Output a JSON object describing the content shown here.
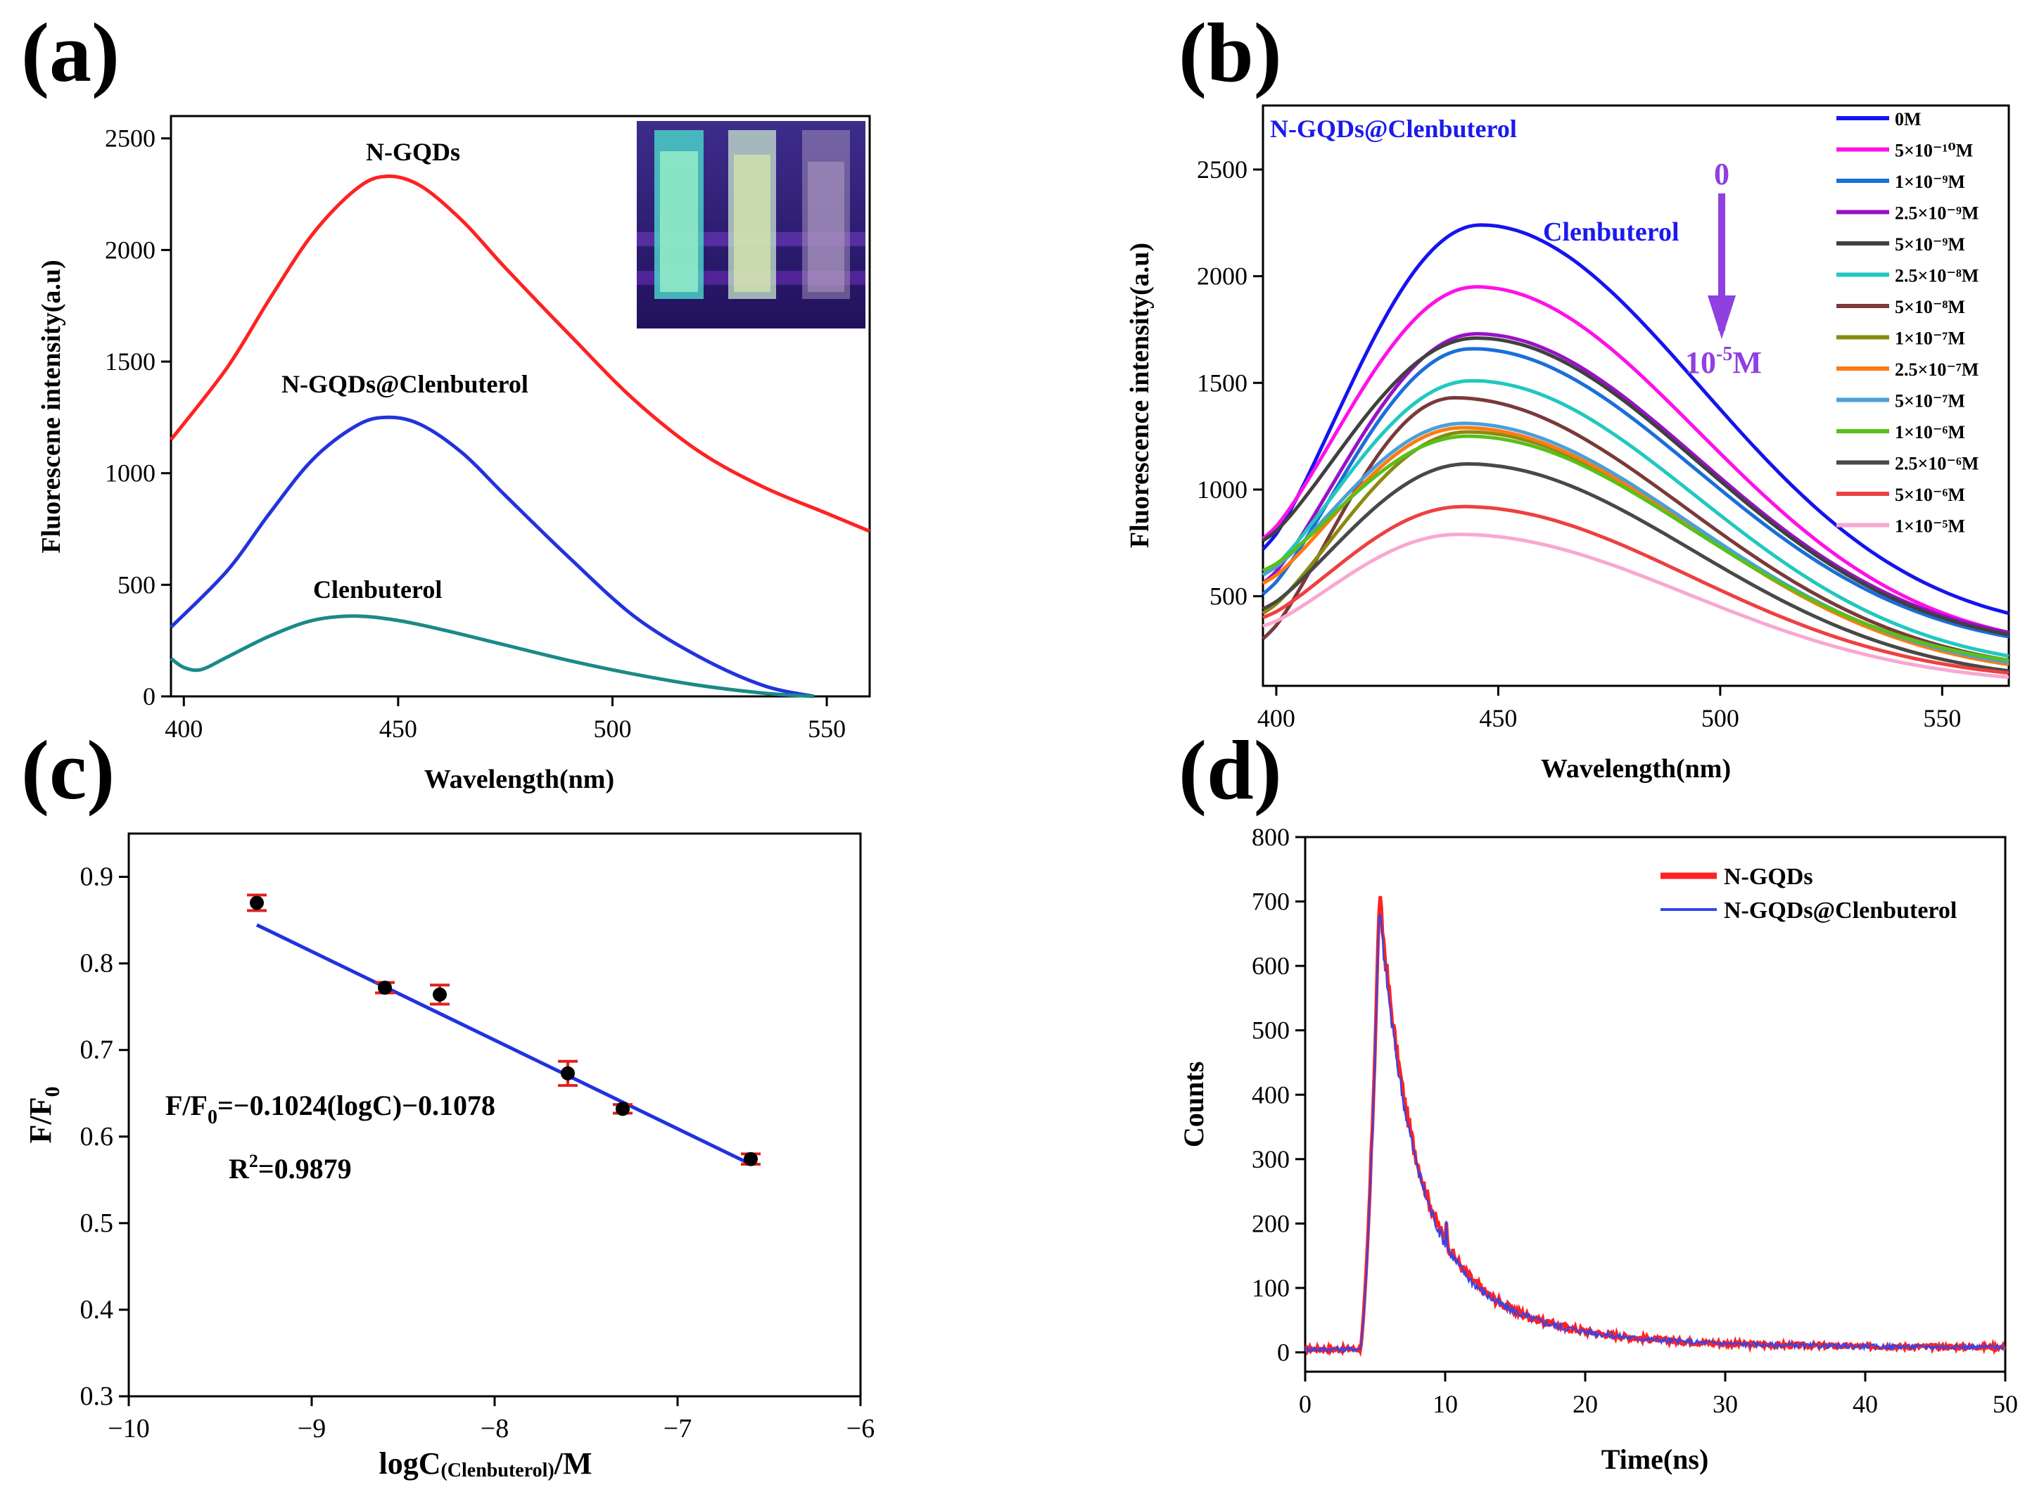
{
  "colors": {
    "axis": "#000000",
    "panel_bg": "#ffffff",
    "line_red": "#ff2222",
    "line_blue": "#2233dd",
    "line_teal": "#1a8a88",
    "fit_line": "#1f33e0",
    "err_bar": "#e02020",
    "marker": "#000000"
  },
  "chart_data": [
    {
      "panel_label": "(a)",
      "type": "line",
      "title": "",
      "xlabel": "Wavelength(nm)",
      "ylabel": "Fluorescene intensity(a.u)",
      "xlim": [
        397,
        560
      ],
      "ylim": [
        0,
        2600
      ],
      "xticks": [
        400,
        450,
        500,
        550
      ],
      "yticks": [
        0,
        500,
        1000,
        1500,
        2000,
        2500
      ],
      "inset": "photo-of-three-cuvettes-under-uv-light",
      "series": [
        {
          "name": "N-GQDs",
          "color": "#ff2222",
          "x": [
            397,
            410,
            420,
            430,
            440,
            447,
            455,
            465,
            475,
            490,
            505,
            520,
            535,
            550,
            560
          ],
          "y": [
            1150,
            1470,
            1780,
            2070,
            2270,
            2330,
            2290,
            2130,
            1920,
            1620,
            1330,
            1100,
            940,
            820,
            740
          ]
        },
        {
          "name": "N-GQDs@Clenbuterol",
          "color": "#2233dd",
          "x": [
            397,
            410,
            420,
            430,
            440,
            447,
            455,
            465,
            475,
            490,
            505,
            520,
            535,
            547
          ],
          "y": [
            310,
            560,
            820,
            1060,
            1210,
            1250,
            1220,
            1090,
            900,
            620,
            360,
            180,
            50,
            0
          ]
        },
        {
          "name": "Clenbuterol",
          "color": "#1a8a88",
          "x": [
            397,
            400,
            404,
            410,
            420,
            430,
            440,
            450,
            460,
            475,
            490,
            505,
            520,
            535,
            547
          ],
          "y": [
            170,
            130,
            120,
            175,
            270,
            340,
            360,
            340,
            300,
            230,
            160,
            100,
            50,
            15,
            0
          ]
        }
      ],
      "labels": [
        {
          "text": "N-GQDs"
        },
        {
          "text": "N-GQDs@Clenbuterol"
        },
        {
          "text": "Clenbuterol"
        }
      ]
    },
    {
      "panel_label": "(b)",
      "type": "line",
      "xlabel": "Wavelength(nm)",
      "ylabel": "Fluorescence intensity(a.u)",
      "xlim": [
        397,
        565
      ],
      "ylim": [
        80,
        2800
      ],
      "xticks": [
        400,
        450,
        500,
        550
      ],
      "yticks": [
        500,
        1000,
        1500,
        2000,
        2500
      ],
      "inner_title": "N-GQDs@Clenbuterol",
      "annotation_label": "Clenbuterol",
      "arrow_top": "0",
      "arrow_bottom_base": "10",
      "arrow_bottom_exp": "-5",
      "arrow_bottom_unit": "M",
      "legend_position": "top-right",
      "series": [
        {
          "name": "0M",
          "color": "#1414ee",
          "y0": 720,
          "peak": 2240,
          "peak_x": 446,
          "end": 420
        },
        {
          "name": "5×10⁻¹⁰M",
          "color": "#ff10e8",
          "y0": 770,
          "peak": 1950,
          "peak_x": 445,
          "end": 330
        },
        {
          "name": "1×10⁻⁹M",
          "color": "#1a6fd8",
          "y0": 510,
          "peak": 1660,
          "peak_x": 444,
          "end": 310
        },
        {
          "name": "2.5×10⁻⁹M",
          "color": "#9a10c8",
          "y0": 560,
          "peak": 1730,
          "peak_x": 445,
          "end": 330
        },
        {
          "name": "5×10⁻⁹M",
          "color": "#404040",
          "y0": 760,
          "peak": 1710,
          "peak_x": 445,
          "end": 320
        },
        {
          "name": "2.5×10⁻⁸M",
          "color": "#20c8c0",
          "y0": 600,
          "peak": 1510,
          "peak_x": 444,
          "end": 220
        },
        {
          "name": "5×10⁻⁸M",
          "color": "#7a3a3a",
          "y0": 300,
          "peak": 1430,
          "peak_x": 440,
          "end": 200
        },
        {
          "name": "1×10⁻⁷M",
          "color": "#8a8a10",
          "y0": 420,
          "peak": 1270,
          "peak_x": 443,
          "end": 190
        },
        {
          "name": "2.5×10⁻⁷M",
          "color": "#ff7a10",
          "y0": 560,
          "peak": 1290,
          "peak_x": 442,
          "end": 180
        },
        {
          "name": "5×10⁻⁷M",
          "color": "#4aa0d8",
          "y0": 600,
          "peak": 1310,
          "peak_x": 442,
          "end": 190
        },
        {
          "name": "1×10⁻⁶M",
          "color": "#58c018",
          "y0": 620,
          "peak": 1250,
          "peak_x": 443,
          "end": 200
        },
        {
          "name": "2.5×10⁻⁶M",
          "color": "#484848",
          "y0": 440,
          "peak": 1120,
          "peak_x": 443,
          "end": 150
        },
        {
          "name": "5×10⁻⁶M",
          "color": "#ee4040",
          "y0": 400,
          "peak": 920,
          "peak_x": 442,
          "end": 140
        },
        {
          "name": "1×10⁻⁵M",
          "color": "#f8a8d0",
          "y0": 360,
          "peak": 790,
          "peak_x": 441,
          "end": 120
        }
      ]
    },
    {
      "panel_label": "(c)",
      "type": "scatter",
      "xlabel_main": "logC",
      "xlabel_sub": "(Clenbuterol)",
      "xlabel_tail": "/M",
      "ylabel_main": "F/F",
      "ylabel_sub": "0",
      "xlim": [
        -10,
        -6
      ],
      "ylim": [
        0.3,
        0.95
      ],
      "xticks": [
        -10,
        -9,
        -8,
        -7,
        -6
      ],
      "xticklabels": [
        "−10",
        "−9",
        "−8",
        "−7",
        "−6"
      ],
      "yticks": [
        0.3,
        0.4,
        0.5,
        0.6,
        0.7,
        0.8,
        0.9
      ],
      "yticklabels": [
        "0.3",
        "0.4",
        "0.5",
        "0.6",
        "0.7",
        "0.8",
        "0.9"
      ],
      "points": [
        {
          "x": -9.3,
          "y": 0.87,
          "err": 0.009
        },
        {
          "x": -8.6,
          "y": 0.772,
          "err": 0.006
        },
        {
          "x": -8.3,
          "y": 0.764,
          "err": 0.011
        },
        {
          "x": -7.6,
          "y": 0.673,
          "err": 0.014
        },
        {
          "x": -7.3,
          "y": 0.632,
          "err": 0.005
        },
        {
          "x": -6.6,
          "y": 0.574,
          "err": 0.006
        }
      ],
      "fit": {
        "slope": -0.1024,
        "intercept": -0.1078,
        "x_range": [
          -9.3,
          -6.6
        ]
      },
      "equation_lhs_main": "F/F",
      "equation_lhs_sub": "0",
      "equation_rhs": "=−0.1024(logC)−0.1078",
      "r2_main": "R",
      "r2_sup": "2",
      "r2_value": "=0.9879"
    },
    {
      "panel_label": "(d)",
      "type": "line",
      "xlabel": "Time(ns)",
      "ylabel": "Counts",
      "xlim": [
        0,
        50
      ],
      "ylim": [
        -30,
        800
      ],
      "xticks": [
        0,
        10,
        20,
        30,
        40,
        50
      ],
      "yticks": [
        0,
        100,
        200,
        300,
        400,
        500,
        600,
        700,
        800
      ],
      "legend_position": "top-right",
      "series": [
        {
          "name": "N-GQDs",
          "color": "#ff2222",
          "peak": 710
        },
        {
          "name": "N-GQDs@Clenbuterol",
          "color": "#3344ee",
          "peak": 690
        }
      ]
    }
  ]
}
